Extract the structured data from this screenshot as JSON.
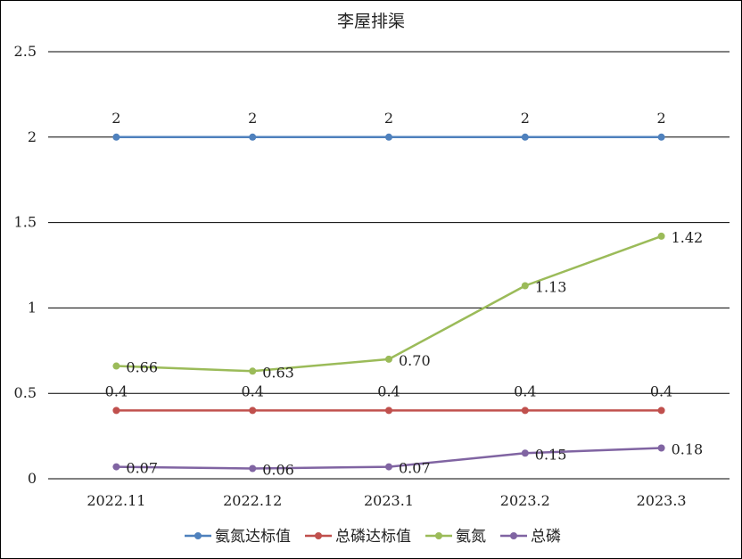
{
  "chart_data": {
    "type": "line",
    "title": "李屋排渠",
    "categories": [
      "2022.11",
      "2022.12",
      "2023.1",
      "2023.2",
      "2023.3"
    ],
    "ylim": [
      0,
      2.5
    ],
    "yticks": [
      "0",
      "0.5",
      "1",
      "1.5",
      "2",
      "2.5"
    ],
    "grid": true,
    "legend_position": "bottom",
    "series": [
      {
        "name": "氨氮达标值",
        "color": "#4f81bd",
        "values": [
          2,
          2,
          2,
          2,
          2
        ],
        "labels": [
          "2",
          "2",
          "2",
          "2",
          "2"
        ],
        "label_pos": "above"
      },
      {
        "name": "总磷达标值",
        "color": "#c0504d",
        "values": [
          0.4,
          0.4,
          0.4,
          0.4,
          0.4
        ],
        "labels": [
          "0.4",
          "0.4",
          "0.4",
          "0.4",
          "0.4"
        ],
        "label_pos": "above"
      },
      {
        "name": "氨氮",
        "color": "#9bbb59",
        "values": [
          0.66,
          0.63,
          0.7,
          1.13,
          1.42
        ],
        "labels": [
          "0.66",
          "0.63",
          "0.70",
          "1.13",
          "1.42"
        ],
        "label_pos": "right"
      },
      {
        "name": "总磷",
        "color": "#8064a2",
        "values": [
          0.07,
          0.06,
          0.07,
          0.15,
          0.18
        ],
        "labels": [
          "0.07",
          "0.06",
          "0.07",
          "0.15",
          "0.18"
        ],
        "label_pos": "right"
      }
    ]
  }
}
